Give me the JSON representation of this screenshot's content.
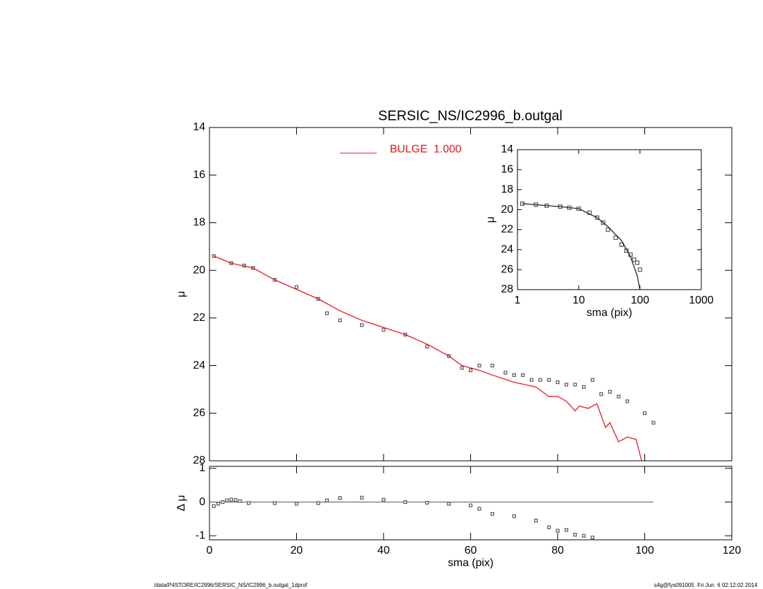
{
  "chart_data": [
    {
      "type": "scatter",
      "title": "SERSIC_NS/IC2996_b.outgal",
      "ylabel": "μ",
      "xlim": [
        0,
        120
      ],
      "ylim": [
        28,
        14
      ],
      "xticks": [
        0,
        20,
        40,
        60,
        80,
        100,
        120
      ],
      "xtick_labels": false,
      "yticks": [
        14,
        16,
        18,
        20,
        22,
        24,
        26,
        28
      ],
      "legend": "top",
      "series": [
        {
          "style": "markers",
          "color": "#555555",
          "x": [
            1,
            5,
            8,
            10,
            15,
            20,
            25,
            27,
            30,
            35,
            40,
            45,
            50,
            55,
            58,
            60,
            62,
            65,
            68,
            70,
            72,
            74,
            76,
            78,
            80,
            82,
            84,
            86,
            88,
            90,
            92,
            94,
            96,
            100,
            102
          ],
          "values": [
            19.4,
            19.7,
            19.8,
            19.9,
            20.4,
            20.7,
            21.2,
            21.8,
            22.1,
            22.3,
            22.5,
            22.7,
            23.2,
            23.6,
            24.1,
            24.2,
            24.0,
            24.0,
            24.3,
            24.4,
            24.4,
            24.6,
            24.6,
            24.6,
            24.7,
            24.8,
            24.8,
            24.9,
            24.6,
            25.2,
            25.1,
            25.3,
            25.5,
            26.0,
            26.4
          ]
        },
        {
          "name": "BULGE  1.000",
          "style": "line",
          "color": "#e8161b",
          "x": [
            1,
            5,
            10,
            15,
            20,
            25,
            30,
            35,
            40,
            45,
            50,
            55,
            58,
            60,
            62,
            65,
            70,
            75,
            78,
            80,
            82,
            84,
            85,
            87,
            89,
            91,
            92,
            94,
            96,
            98,
            100
          ],
          "values": [
            19.4,
            19.7,
            19.9,
            20.4,
            20.8,
            21.2,
            21.7,
            22.1,
            22.4,
            22.7,
            23.1,
            23.6,
            24.0,
            24.1,
            24.2,
            24.4,
            24.7,
            24.9,
            25.3,
            25.3,
            25.5,
            25.9,
            25.7,
            25.8,
            25.6,
            26.6,
            26.4,
            27.2,
            27.0,
            27.1,
            28.5
          ]
        }
      ]
    },
    {
      "type": "scatter",
      "ylabel": "Δ μ",
      "xlabel": "sma (pix)",
      "xlim": [
        0,
        120
      ],
      "ylim": [
        -1.12,
        1.06
      ],
      "xticks": [
        0,
        20,
        40,
        60,
        80,
        100,
        120
      ],
      "xtick_labels": true,
      "yticks": [
        -1,
        0,
        1
      ],
      "reference_line": {
        "y": 0,
        "x": [
          0,
          102
        ]
      },
      "series": [
        {
          "style": "markers",
          "color": "#555555",
          "x": [
            1,
            2,
            3,
            4,
            5,
            6,
            7,
            9,
            15,
            20,
            25,
            27,
            30,
            35,
            40,
            45,
            50,
            55,
            60,
            62,
            65,
            70,
            75,
            78,
            80,
            82,
            84,
            86,
            88
          ],
          "values": [
            -0.12,
            -0.05,
            0.0,
            0.05,
            0.07,
            0.06,
            0.03,
            -0.03,
            -0.03,
            -0.05,
            -0.03,
            0.05,
            0.12,
            0.13,
            0.07,
            0.0,
            -0.02,
            -0.05,
            -0.1,
            -0.2,
            -0.35,
            -0.42,
            -0.55,
            -0.75,
            -0.85,
            -0.83,
            -0.97,
            -1.0,
            -1.05
          ]
        }
      ]
    },
    {
      "type": "scatter",
      "xscale": "log",
      "xlabel": "sma (pix)",
      "ylabel": "μ",
      "xlim": [
        1,
        1000
      ],
      "ylim": [
        28,
        14
      ],
      "xticks": [
        1,
        10,
        100,
        1000
      ],
      "xtick_labels": true,
      "yticks": [
        14,
        16,
        18,
        20,
        22,
        24,
        26,
        28
      ],
      "series": [
        {
          "style": "markers",
          "color": "#555555",
          "x": [
            1.2,
            2,
            3,
            5,
            7,
            10,
            15,
            20,
            25,
            30,
            40,
            50,
            60,
            70,
            80,
            90,
            100
          ],
          "values": [
            19.4,
            19.5,
            19.6,
            19.7,
            19.8,
            19.9,
            20.3,
            20.8,
            21.3,
            22.0,
            22.8,
            23.5,
            24.1,
            24.5,
            25.0,
            25.3,
            26.0
          ]
        },
        {
          "style": "line",
          "color": "#222222",
          "x": [
            1.2,
            5,
            10,
            20,
            30,
            50,
            70,
            90,
            100
          ],
          "values": [
            19.4,
            19.7,
            19.9,
            20.8,
            21.7,
            23.1,
            24.7,
            26.6,
            28.0
          ]
        }
      ]
    }
  ],
  "footer": {
    "left": "/data/P4STORE/IC2996/SERSIC_NS/IC2996_b.outgal_1dprof",
    "right": "s4g@fys091005  Fri Jun  6 02:12:02 2014"
  }
}
